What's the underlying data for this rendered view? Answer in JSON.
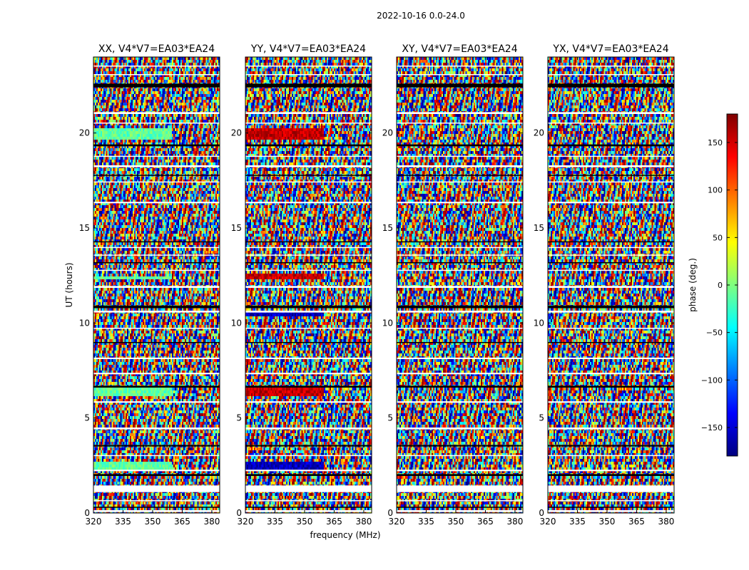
{
  "chart_data": {
    "type": "heatmap",
    "suptitle": "2022-10-16 0.0-24.0",
    "xlabel": "frequency (MHz)",
    "ylabel": "UT (hours)",
    "xlim": [
      320,
      384
    ],
    "ylim": [
      0,
      24
    ],
    "xticks": [
      320,
      335,
      350,
      365,
      380
    ],
    "yticks": [
      0,
      5,
      10,
      15,
      20
    ],
    "panels": [
      {
        "title": "XX, V4*V7=EA03*EA24",
        "correlation": "XX"
      },
      {
        "title": "YY, V4*V7=EA03*EA24",
        "correlation": "YY"
      },
      {
        "title": "XY, V4*V7=EA03*EA24",
        "correlation": "XY"
      },
      {
        "title": "YX, V4*V7=EA03*EA24",
        "correlation": "YX"
      }
    ],
    "colorbar": {
      "label": "phase (deg.)",
      "range": [
        -180,
        180
      ],
      "ticks": [
        150,
        100,
        50,
        0,
        -50,
        -100,
        -150
      ],
      "colormap": "jet",
      "colormap_stops": [
        "#00007f",
        "#0000ff",
        "#007fff",
        "#00ffff",
        "#7fff7f",
        "#ffff00",
        "#ff7f00",
        "#ff0000",
        "#7f0000"
      ]
    },
    "flagged_ut_bands_hours": [
      [
        0.05,
        0.15
      ],
      [
        0.28,
        0.33
      ],
      [
        0.62,
        0.68
      ],
      [
        1.1,
        1.45
      ],
      [
        1.95,
        2.05
      ],
      [
        2.2,
        2.28
      ],
      [
        3.0,
        3.05
      ],
      [
        3.5,
        3.58
      ],
      [
        4.4,
        4.5
      ],
      [
        5.8,
        5.88
      ],
      [
        6.6,
        6.7
      ],
      [
        7.3,
        7.38
      ],
      [
        8.1,
        8.18
      ],
      [
        8.95,
        9.0
      ],
      [
        9.7,
        9.75
      ],
      [
        10.55,
        10.65
      ],
      [
        10.78,
        10.92
      ],
      [
        11.85,
        11.95
      ],
      [
        12.75,
        12.8
      ],
      [
        13.15,
        13.2
      ],
      [
        13.55,
        13.6
      ],
      [
        13.95,
        14.0
      ],
      [
        14.25,
        14.3
      ],
      [
        16.3,
        16.38
      ],
      [
        17.4,
        17.45
      ],
      [
        17.75,
        17.8
      ],
      [
        18.2,
        18.3
      ],
      [
        18.75,
        18.8
      ],
      [
        19.3,
        19.4
      ],
      [
        20.5,
        20.55
      ],
      [
        21.0,
        21.1
      ],
      [
        22.4,
        22.6
      ],
      [
        23.05,
        23.1
      ],
      [
        23.5,
        23.55
      ]
    ]
  }
}
